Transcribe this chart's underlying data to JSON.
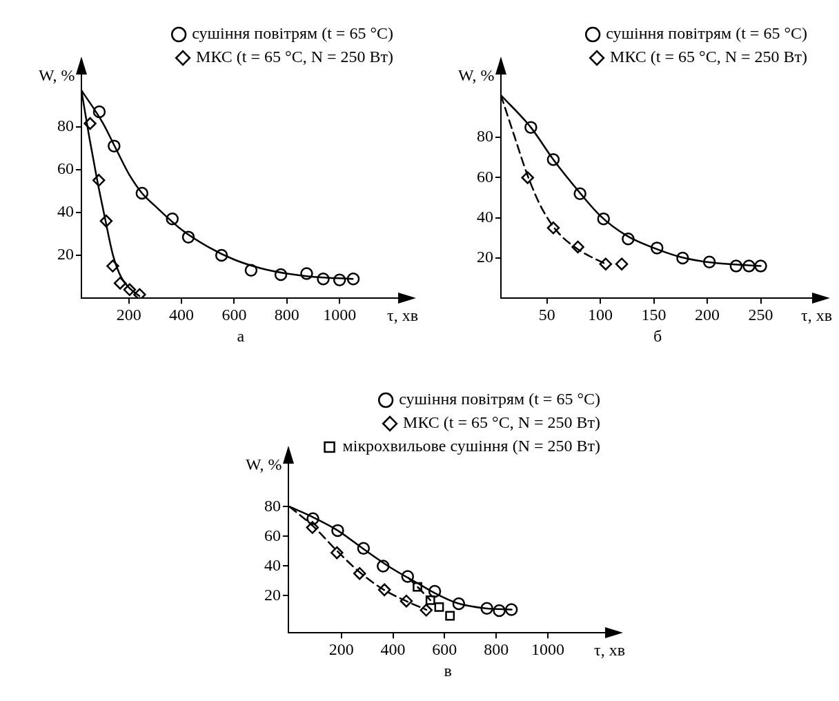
{
  "chart_data": [
    {
      "type": "scatter",
      "xlabel": "τ, хв",
      "ylabel": "W, %",
      "annotations": [
        "а"
      ],
      "xlim": [
        20,
        1230
      ],
      "ylim": [
        0,
        105
      ],
      "xticks": [
        200,
        400,
        600,
        800,
        1000
      ],
      "yticks": [
        20,
        40,
        60,
        80
      ],
      "grid": false,
      "legend": "top right",
      "series": [
        {
          "name": "сушіння повітрям (t = 65 °C)",
          "type": "scatter",
          "marker": "circle",
          "color": "#000000",
          "x": [
            88,
            144,
            250,
            365,
            426,
            552,
            664,
            777,
            875,
            938,
            1000,
            1052
          ],
          "values": [
            87,
            71,
            49,
            37,
            28.5,
            20,
            13,
            11,
            11.5,
            9,
            8.5,
            9
          ]
        },
        {
          "name": "МКС (t = 65 °C, N = 250 Вт)",
          "type": "scatter",
          "marker": "diamond",
          "color": "#000000",
          "x": [
            53,
            86,
            114,
            139,
            167,
            203,
            241
          ],
          "values": [
            81.5,
            55,
            36,
            15,
            7,
            4,
            1.7
          ]
        },
        {
          "type": "line",
          "marker": "none",
          "line_style": "solid",
          "color": "#000000",
          "x": [
            20,
            100,
            150,
            200,
            250,
            300,
            400,
            500,
            600,
            700,
            800,
            900,
            1050
          ],
          "values": [
            97,
            82,
            70,
            58,
            49,
            43,
            32,
            24,
            18,
            14,
            11.5,
            10,
            9
          ]
        },
        {
          "type": "line",
          "marker": "none",
          "line_style": "solid",
          "color": "#000000",
          "x": [
            20,
            50,
            80,
            110,
            140,
            170,
            200,
            240
          ],
          "values": [
            97,
            75,
            55,
            37,
            20,
            10,
            5,
            1
          ]
        }
      ]
    },
    {
      "type": "scatter",
      "xlabel": "τ, хв",
      "ylabel": "W, %",
      "annotations": [
        "б"
      ],
      "xlim": [
        7,
        300
      ],
      "ylim": [
        0,
        112
      ],
      "xticks": [
        50,
        100,
        150,
        200,
        250
      ],
      "yticks": [
        20,
        40,
        60,
        80
      ],
      "grid": false,
      "legend": "top right",
      "series": [
        {
          "name": "сушіння повітрям (t = 65 °C)",
          "type": "scatter",
          "marker": "circle",
          "color": "#000000",
          "x": [
            35,
            56,
            81,
            103,
            126,
            153,
            177,
            202,
            227,
            239,
            250
          ],
          "values": [
            85,
            69,
            52,
            39.5,
            29.5,
            25,
            20,
            18,
            16,
            16,
            16
          ]
        },
        {
          "name": "МКС (t = 65 °C, N = 250 Вт)",
          "type": "scatter",
          "marker": "diamond",
          "color": "#000000",
          "x": [
            32,
            56,
            79,
            105,
            120
          ],
          "values": [
            60,
            35,
            25.5,
            17,
            17
          ]
        },
        {
          "type": "line",
          "marker": "none",
          "line_style": "solid",
          "color": "#000000",
          "x": [
            7,
            35,
            56,
            80,
            100,
            125,
            150,
            175,
            200,
            250
          ],
          "values": [
            101,
            85,
            69,
            53,
            41,
            31,
            25,
            20.5,
            18,
            16
          ]
        },
        {
          "type": "line",
          "marker": "none",
          "line_style": "dashed",
          "color": "#000000",
          "x": [
            7,
            20,
            32,
            45,
            60,
            80,
            105
          ],
          "values": [
            101,
            80,
            61,
            45,
            33,
            24,
            17
          ]
        }
      ]
    },
    {
      "type": "scatter",
      "xlabel": "τ, хв",
      "ylabel": "W, %",
      "annotations": [
        "в"
      ],
      "xlim": [
        -5,
        1230
      ],
      "ylim": [
        -5,
        110
      ],
      "xticks": [
        200,
        400,
        600,
        800,
        1000
      ],
      "yticks": [
        20,
        40,
        60,
        80
      ],
      "grid": false,
      "legend": "top right",
      "series": [
        {
          "name": "сушіння повітрям (t = 65 °C)",
          "type": "scatter",
          "marker": "circle",
          "color": "#000000",
          "x": [
            90,
            186,
            286,
            362,
            457,
            562,
            655,
            764,
            812,
            859
          ],
          "values": [
            72,
            64,
            52,
            40,
            33,
            23,
            14.6,
            11.5,
            10,
            10.7
          ]
        },
        {
          "name": "МКС (t = 65 °C, N = 250 Вт)",
          "type": "scatter",
          "marker": "diamond",
          "color": "#000000",
          "x": [
            88,
            183,
            271,
            367,
            452,
            529
          ],
          "values": [
            66,
            49,
            35,
            24,
            16.4,
            10.3
          ]
        },
        {
          "name": "мікрохвильове сушіння (N = 250 Вт)",
          "type": "scatter",
          "marker": "square",
          "color": "#000000",
          "x": [
            495,
            545,
            579,
            621
          ],
          "values": [
            26,
            17,
            12.4,
            6.5
          ]
        },
        {
          "type": "line",
          "marker": "none",
          "line_style": "solid",
          "color": "#000000",
          "x": [
            0,
            90,
            186,
            290,
            400,
            500,
            560,
            650,
            760,
            860
          ],
          "values": [
            80,
            73,
            64,
            51,
            38,
            28,
            22,
            15,
            11.5,
            10.7
          ]
        },
        {
          "type": "line",
          "marker": "none",
          "line_style": "dashed",
          "color": "#000000",
          "x": [
            0,
            90,
            185,
            270,
            365,
            450,
            530
          ],
          "values": [
            80,
            67,
            50,
            36,
            24,
            16.5,
            10.5
          ]
        },
        {
          "type": "line",
          "marker": "none",
          "line_style": "dashed",
          "color": "#000000",
          "x": [
            460,
            495,
            545
          ],
          "values": [
            32,
            26,
            17
          ]
        }
      ]
    }
  ]
}
